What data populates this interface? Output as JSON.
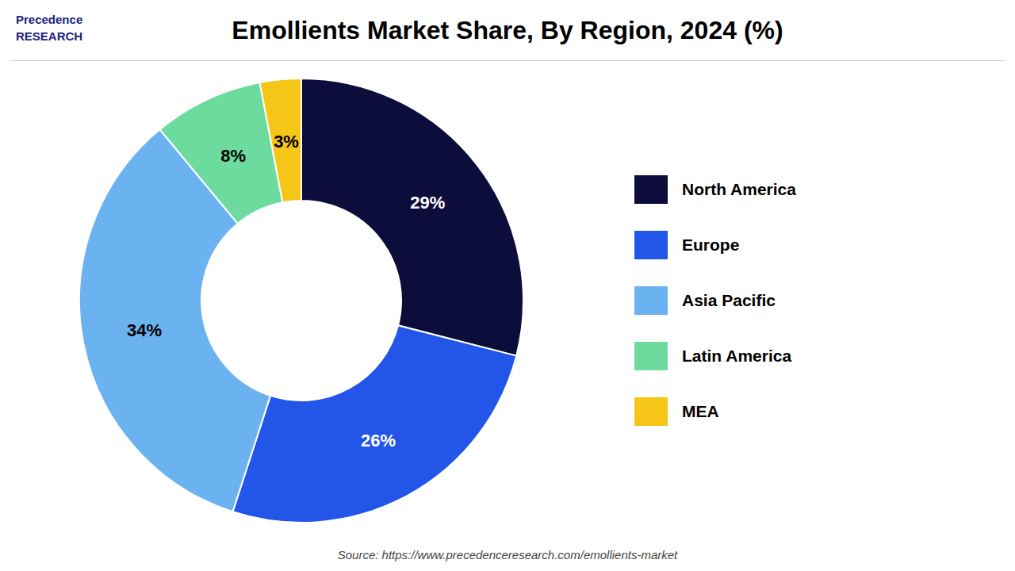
{
  "chart_data": {
    "type": "pie",
    "title": "Emollients Market Share, By Region, 2024 (%)",
    "categories": [
      "North America",
      "Europe",
      "Asia Pacific",
      "Latin America",
      "MEA"
    ],
    "values": [
      29,
      26,
      34,
      8,
      3
    ],
    "value_labels": [
      "29%",
      "26%",
      "34%",
      "8%",
      "3%"
    ],
    "colors": [
      "#0d0d3b",
      "#2255e8",
      "#6bb3f0",
      "#6ddb9e",
      "#f5c518"
    ],
    "data_labels": true,
    "legend": "right",
    "annotations": [
      "Precedence\nRESEARCH",
      "Source: https://www.precedenceresearch.com/emollients-market"
    ]
  }
}
